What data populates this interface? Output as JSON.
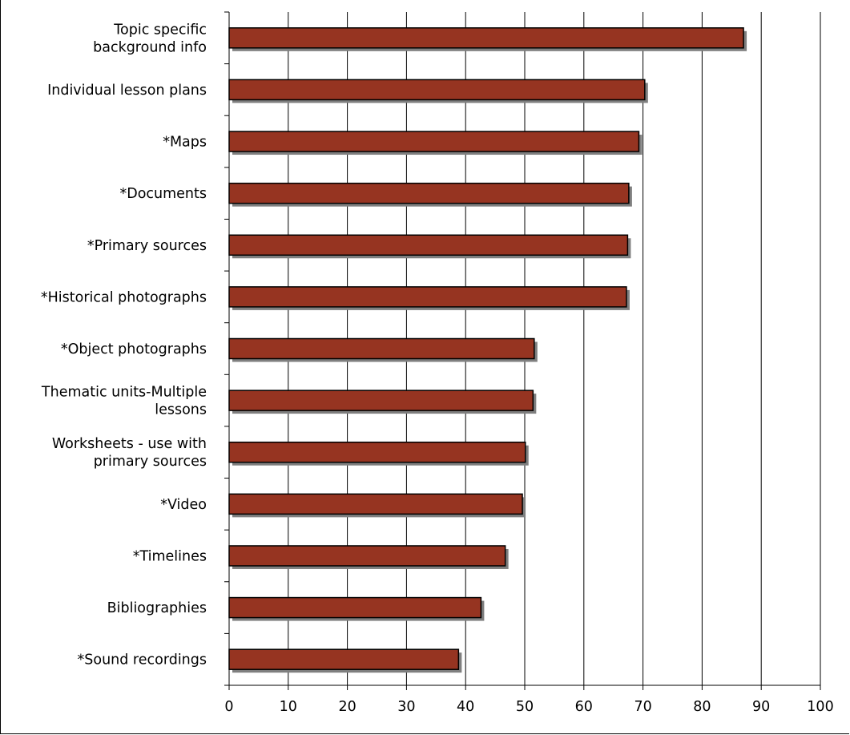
{
  "chart_data": {
    "type": "bar",
    "orientation": "horizontal",
    "categories": [
      [
        "Topic specific",
        "background info"
      ],
      [
        "Individual lesson plans"
      ],
      [
        "*Maps"
      ],
      [
        "*Documents"
      ],
      [
        "*Primary sources"
      ],
      [
        "*Historical photographs"
      ],
      [
        "*Object photographs"
      ],
      [
        "Thematic units-Multiple",
        "lessons"
      ],
      [
        "Worksheets - use with",
        "primary sources"
      ],
      [
        "*Video"
      ],
      [
        "*Timelines"
      ],
      [
        "Bibliographies"
      ],
      [
        "*Sound recordings"
      ]
    ],
    "values": [
      87,
      70.3,
      69.3,
      67.6,
      67.4,
      67.2,
      51.6,
      51.4,
      50.1,
      49.6,
      46.7,
      42.6,
      38.8
    ],
    "xlim": [
      0,
      100
    ],
    "xticks": [
      "0",
      "10",
      "20",
      "30",
      "40",
      "50",
      "60",
      "70",
      "80",
      "90",
      "100"
    ],
    "grid": true,
    "legend": "none",
    "title": "",
    "xlabel": "",
    "ylabel": "",
    "colors": {
      "bar": "#963421",
      "bar_shadow": "#7f7f7f",
      "outline": "#000000",
      "gridline": "#000000"
    }
  }
}
